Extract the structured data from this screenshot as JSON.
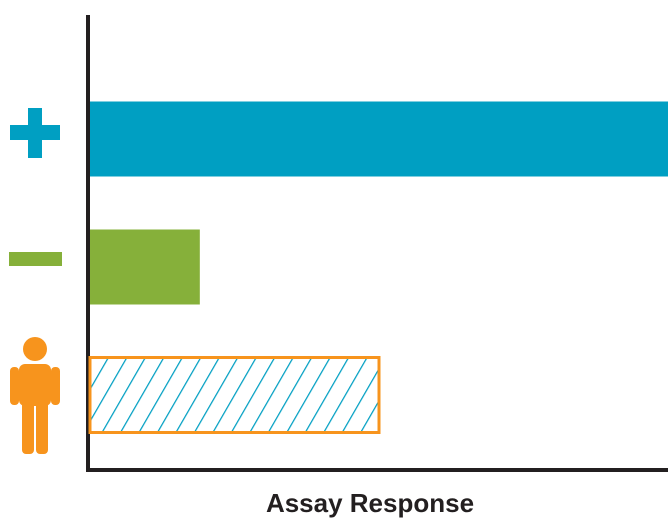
{
  "chart_data": {
    "type": "barh",
    "xlabel": "Assay Response",
    "categories": [
      null,
      null,
      null
    ],
    "values": [
      100,
      19,
      50
    ],
    "colors": [
      "#009fc2",
      "#86b03a",
      "#009fc2"
    ],
    "hatch": [
      false,
      false,
      true
    ],
    "edgecolor": "#f7941d",
    "xlim": [
      0,
      100
    ]
  }
}
